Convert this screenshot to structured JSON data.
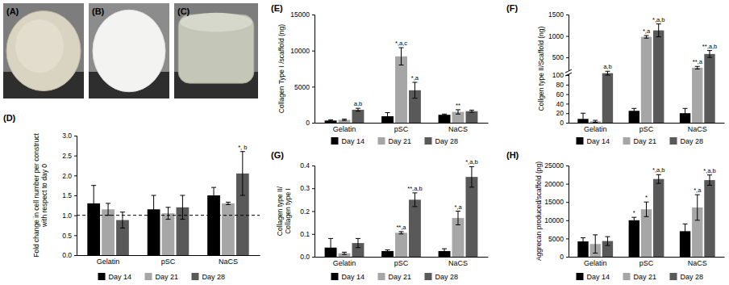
{
  "panels": [
    {
      "label": "(A)"
    },
    {
      "label": "(B)"
    },
    {
      "label": "(C)"
    }
  ],
  "chart_data": [
    {
      "type": "bar",
      "title": "(D)",
      "y_label": [
        "Fold change in cell number per construct",
        "with respect to day 0"
      ],
      "categories": [
        "Gelatin",
        "pSC",
        "NaCS"
      ],
      "series": [
        {
          "name": "Day 14",
          "color": "#000000",
          "values": [
            1.3,
            1.15,
            1.5
          ],
          "errors": [
            0.45,
            0.35,
            0.2
          ]
        },
        {
          "name": "Day 21",
          "color": "#a6a6a6",
          "values": [
            1.15,
            1.05,
            1.3
          ],
          "errors": [
            0.15,
            0.15,
            0.03
          ]
        },
        {
          "name": "Day 28",
          "color": "#595959",
          "values": [
            0.88,
            1.2,
            2.05
          ],
          "errors": [
            0.2,
            0.3,
            0.55
          ],
          "annotations": [
            null,
            null,
            "*, b"
          ]
        }
      ],
      "ylim": [
        0,
        3
      ],
      "yticks": [
        {
          "value": 0,
          "label": "0.0"
        },
        0.5,
        {
          "value": 1,
          "label": "1.0"
        },
        1.5,
        {
          "value": 2,
          "label": "2.0"
        },
        2.5,
        {
          "value": 3,
          "label": "3.0"
        }
      ],
      "reference_line": 1,
      "grid": false,
      "legend": "bottom"
    },
    {
      "type": "bar",
      "title": "(E)",
      "y_label": [
        "Collagen Type I /scaffold (ng)"
      ],
      "categories": [
        "Gelatin",
        "pSC",
        "NaCS"
      ],
      "series": [
        {
          "name": "Day 14",
          "color": "#000000",
          "values": [
            300,
            900,
            1100
          ],
          "errors": [
            100,
            500,
            100
          ]
        },
        {
          "name": "Day 21",
          "color": "#a6a6a6",
          "values": [
            400,
            9200,
            1500
          ],
          "errors": [
            100,
            1200,
            300
          ],
          "annotations": [
            null,
            "*,a,c",
            "**"
          ]
        },
        {
          "name": "Day 28",
          "color": "#595959",
          "values": [
            1800,
            4500,
            1600
          ],
          "errors": [
            200,
            1100,
            150
          ],
          "annotations": [
            "a,b",
            "*,a",
            null
          ]
        }
      ],
      "ylim": [
        0,
        15000
      ],
      "yticks": [
        0,
        5000,
        10000,
        15000
      ],
      "grid": false,
      "legend": "bottom"
    },
    {
      "type": "bar",
      "title": "(F)",
      "y_label": [
        "Collgen type II/Scaffold (ng)"
      ],
      "categories": [
        "Gelatin",
        "pSC",
        "NaCS"
      ],
      "series": [
        {
          "name": "Day 14",
          "color": "#000000",
          "values": [
            8,
            25,
            20
          ],
          "errors": [
            12,
            5,
            10
          ]
        },
        {
          "name": "Day 21",
          "color": "#a6a6a6",
          "values": [
            3,
            980,
            260
          ],
          "errors": [
            2,
            30,
            30
          ],
          "annotations": [
            null,
            "*,a",
            "**,a"
          ]
        },
        {
          "name": "Day 28",
          "color": "#595959",
          "values": [
            140,
            1130,
            580
          ],
          "errors": [
            40,
            150,
            80
          ],
          "annotations": [
            "a,b",
            "*,a,b",
            "**,a,b"
          ]
        }
      ],
      "ylim": [
        0,
        1500
      ],
      "y_break": [
        100,
        200
      ],
      "yticks": [
        0,
        20,
        40,
        60,
        80,
        100,
        500,
        1000,
        1500
      ],
      "grid": false,
      "legend": "bottom"
    },
    {
      "type": "bar",
      "title": "(G)",
      "y_label": [
        "Collagen type II/",
        "Collagen type I"
      ],
      "categories": [
        "Gelatin",
        "pSC",
        "NaCS"
      ],
      "series": [
        {
          "name": "Day 14",
          "color": "#000000",
          "values": [
            0.04,
            0.025,
            0.025
          ],
          "errors": [
            0.04,
            0.005,
            0.01
          ]
        },
        {
          "name": "Day 21",
          "color": "#a6a6a6",
          "values": [
            0.015,
            0.105,
            0.17
          ],
          "errors": [
            0.005,
            0.005,
            0.03
          ],
          "annotations": [
            null,
            "**,a",
            "*,a"
          ]
        },
        {
          "name": "Day 28",
          "color": "#595959",
          "values": [
            0.06,
            0.25,
            0.35
          ],
          "errors": [
            0.02,
            0.03,
            0.045
          ],
          "annotations": [
            null,
            "**,a,b",
            "*,a,b"
          ]
        }
      ],
      "ylim": [
        0,
        0.4
      ],
      "yticks": [
        {
          "value": 0,
          "label": "0.0"
        },
        0.1,
        0.2,
        0.3,
        0.4
      ],
      "grid": false,
      "legend": "bottom"
    },
    {
      "type": "bar",
      "title": "(H)",
      "y_label": [
        "Aggrecan produced/scaffold (pg)"
      ],
      "categories": [
        "Gelatin",
        "pSC",
        "NaCS"
      ],
      "series": [
        {
          "name": "Day 14",
          "color": "#000000",
          "values": [
            4200,
            10000,
            7000
          ],
          "errors": [
            1000,
            800,
            2000
          ],
          "annotations": [
            null,
            "*",
            null
          ]
        },
        {
          "name": "Day 21",
          "color": "#a6a6a6",
          "values": [
            3500,
            13000,
            13500
          ],
          "errors": [
            2500,
            2000,
            3500
          ],
          "annotations": [
            null,
            "*",
            "*,a"
          ]
        },
        {
          "name": "Day 28",
          "color": "#595959",
          "values": [
            4300,
            21300,
            21000
          ],
          "errors": [
            1200,
            1200,
            1400
          ],
          "annotations": [
            null,
            "*,a,b",
            "*,a,b"
          ]
        }
      ],
      "ylim": [
        0,
        25000
      ],
      "yticks": [
        0,
        5000,
        10000,
        15000,
        20000,
        25000
      ],
      "grid": false,
      "legend": "bottom"
    }
  ]
}
